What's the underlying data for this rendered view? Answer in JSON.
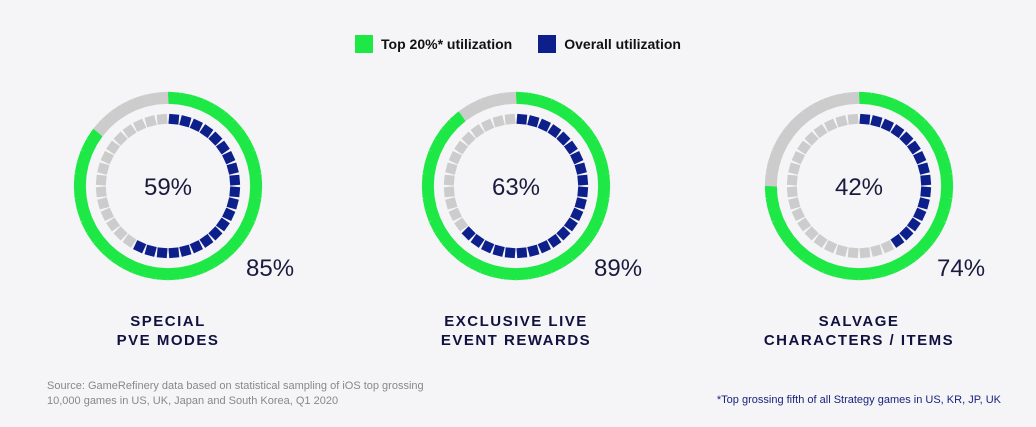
{
  "legend": {
    "top_label": "Top 20%* utilization",
    "overall_label": "Overall utilization"
  },
  "colors": {
    "top": "#1ee845",
    "overall": "#0d1f8a",
    "empty": "#cccccc",
    "text": "#1a1a3e"
  },
  "chart_data": {
    "type": "donut",
    "series": [
      {
        "name": "Top 20%* utilization",
        "ring": "outer"
      },
      {
        "name": "Overall utilization",
        "ring": "inner"
      }
    ],
    "charts": [
      {
        "label_line1": "SPECIAL",
        "label_line2": "PVE MODES",
        "overall_pct": 59,
        "top_pct": 85,
        "overall_text": "59%",
        "top_text": "85%"
      },
      {
        "label_line1": "EXCLUSIVE LIVE",
        "label_line2": "EVENT REWARDS",
        "overall_pct": 63,
        "top_pct": 89,
        "overall_text": "63%",
        "top_text": "89%"
      },
      {
        "label_line1": "SALVAGE",
        "label_line2": "CHARACTERS / ITEMS",
        "overall_pct": 42,
        "top_pct": 74,
        "overall_text": "42%",
        "top_text": "74%"
      }
    ]
  },
  "footer": {
    "source_line1": "Source: GameRefinery data based on statistical sampling of iOS top grossing",
    "source_line2": "10,000 games in US, UK, Japan and South Korea, Q1 2020",
    "footnote": "*Top grossing fifth of all Strategy games in US, KR, JP, UK"
  }
}
